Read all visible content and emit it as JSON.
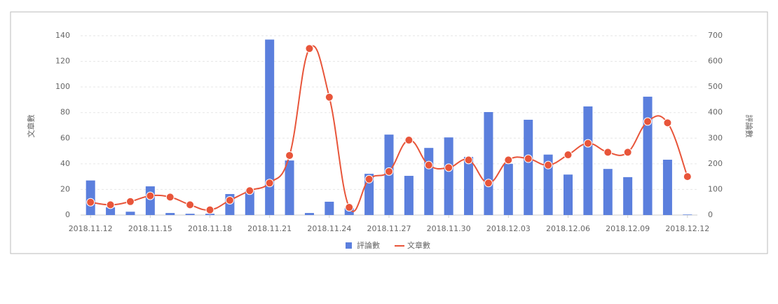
{
  "chart_data": {
    "type": "bar-line",
    "y_label": "文章數",
    "y2_label": "評論數",
    "categories": [
      "2018.11.12",
      null,
      null,
      "2018.11.15",
      null,
      null,
      "2018.11.18",
      null,
      null,
      "2018.11.21",
      null,
      null,
      "2018.11.24",
      null,
      null,
      "2018.11.27",
      null,
      null,
      "2018.11.30",
      null,
      null,
      "2018.12.03",
      null,
      null,
      "2018.12.06",
      null,
      null,
      "2018.12.09",
      null,
      null,
      "2018.12.12"
    ],
    "ylim": [
      0,
      140
    ],
    "yticks": [
      0,
      20,
      40,
      60,
      80,
      100,
      120,
      140
    ],
    "y2lim": [
      0,
      700
    ],
    "y2ticks": [
      0,
      100,
      200,
      300,
      400,
      500,
      600,
      700
    ],
    "grid": true,
    "legend": "bottom",
    "series": [
      {
        "name": "評論數",
        "type": "bar",
        "axis": "y2",
        "color": "#5b7fdd",
        "values": [
          135,
          30,
          13,
          112,
          8,
          5,
          5,
          82,
          95,
          685,
          213,
          8,
          52,
          27,
          161,
          314,
          153,
          262,
          303,
          227,
          402,
          200,
          372,
          236,
          158,
          424,
          180,
          148,
          462,
          216,
          2
        ]
      },
      {
        "name": "文章數",
        "type": "line",
        "axis": "y",
        "color": "#e8553a",
        "values": [
          10,
          8,
          10.5,
          15,
          14,
          8,
          4,
          11.5,
          19,
          25,
          46.5,
          130,
          92,
          6,
          28,
          34,
          58.5,
          39,
          37,
          43,
          25,
          43,
          44,
          39,
          47,
          56,
          49,
          49,
          73,
          72,
          30
        ]
      }
    ]
  }
}
